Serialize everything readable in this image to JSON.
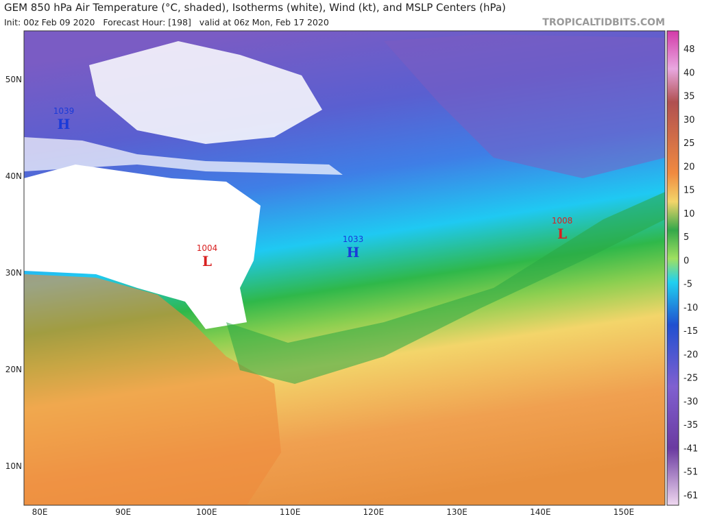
{
  "header": {
    "title": "GEM 850 hPa Air Temperature (°C, shaded), Isotherms (white), Wind (kt), and MSLP Centers (hPa)",
    "subtitle": "Init: 00z Feb 09 2020   Forecast Hour: [198]   valid at 06z Mon, Feb 17 2020",
    "site": "TROPICALTIDBITS.COM"
  },
  "map": {
    "lat_labels": [
      "50N",
      "40N",
      "30N",
      "20N",
      "10N"
    ],
    "lon_labels": [
      "80E",
      "90E",
      "100E",
      "110E",
      "120E",
      "130E",
      "140E",
      "150E"
    ],
    "centers": [
      {
        "value": "1039",
        "label": "H"
      },
      {
        "value": "1004",
        "label": "L"
      },
      {
        "value": "1033",
        "label": "H"
      },
      {
        "value": "1008",
        "label": "L"
      }
    ]
  },
  "colorbar": {
    "labels": [
      48,
      40,
      35,
      30,
      25,
      20,
      15,
      10,
      5,
      0,
      -5,
      -10,
      -15,
      -20,
      -25,
      -30,
      -35,
      -41,
      -51,
      -61
    ]
  }
}
